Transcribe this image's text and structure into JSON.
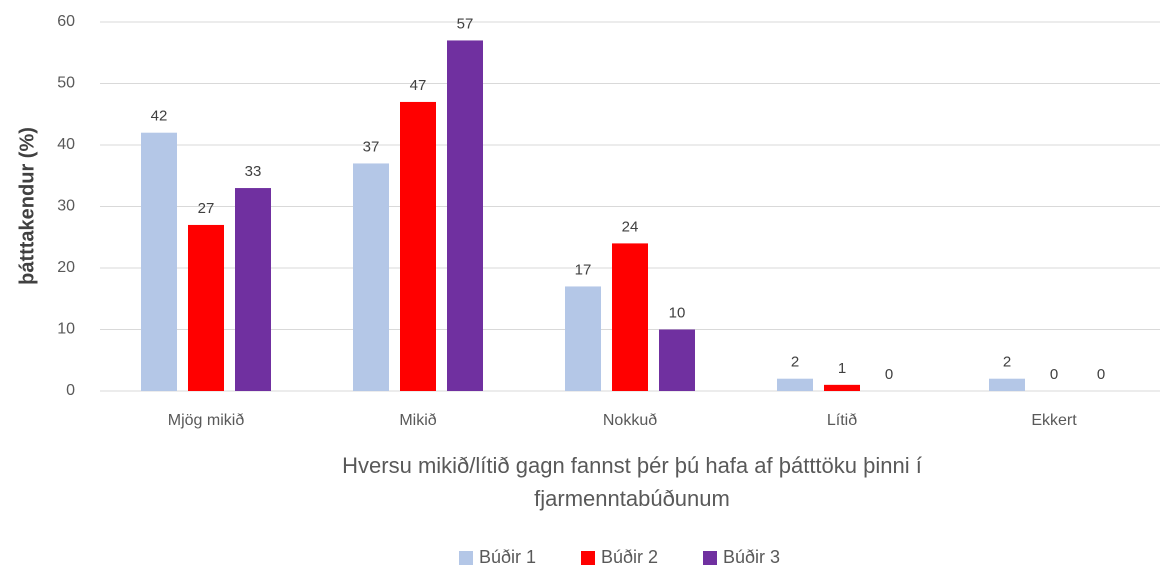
{
  "chart_data": {
    "type": "bar",
    "ylabel": "þátttakendur (%)",
    "xlabel": [
      "Hversu mikið/lítið gagn fannst þér þú hafa af þátttöku þinni í",
      "fjarmenntabúðunum"
    ],
    "categories": [
      "Mjög mikið",
      "Mikið",
      "Nokkuð",
      "Lítið",
      "Ekkert"
    ],
    "series": [
      {
        "name": "Búðir 1",
        "color": "#b4c7e7",
        "values": [
          42,
          37,
          17,
          2,
          2
        ]
      },
      {
        "name": "Búðir 2",
        "color": "#ff0000",
        "values": [
          27,
          47,
          24,
          1,
          0
        ]
      },
      {
        "name": "Búðir 3",
        "color": "#7030a0",
        "values": [
          33,
          57,
          10,
          0,
          0
        ]
      }
    ],
    "ylim": [
      0,
      60
    ],
    "yticks": [
      0,
      10,
      20,
      30,
      40,
      50,
      60
    ],
    "grid": true,
    "legend": "bottom"
  }
}
